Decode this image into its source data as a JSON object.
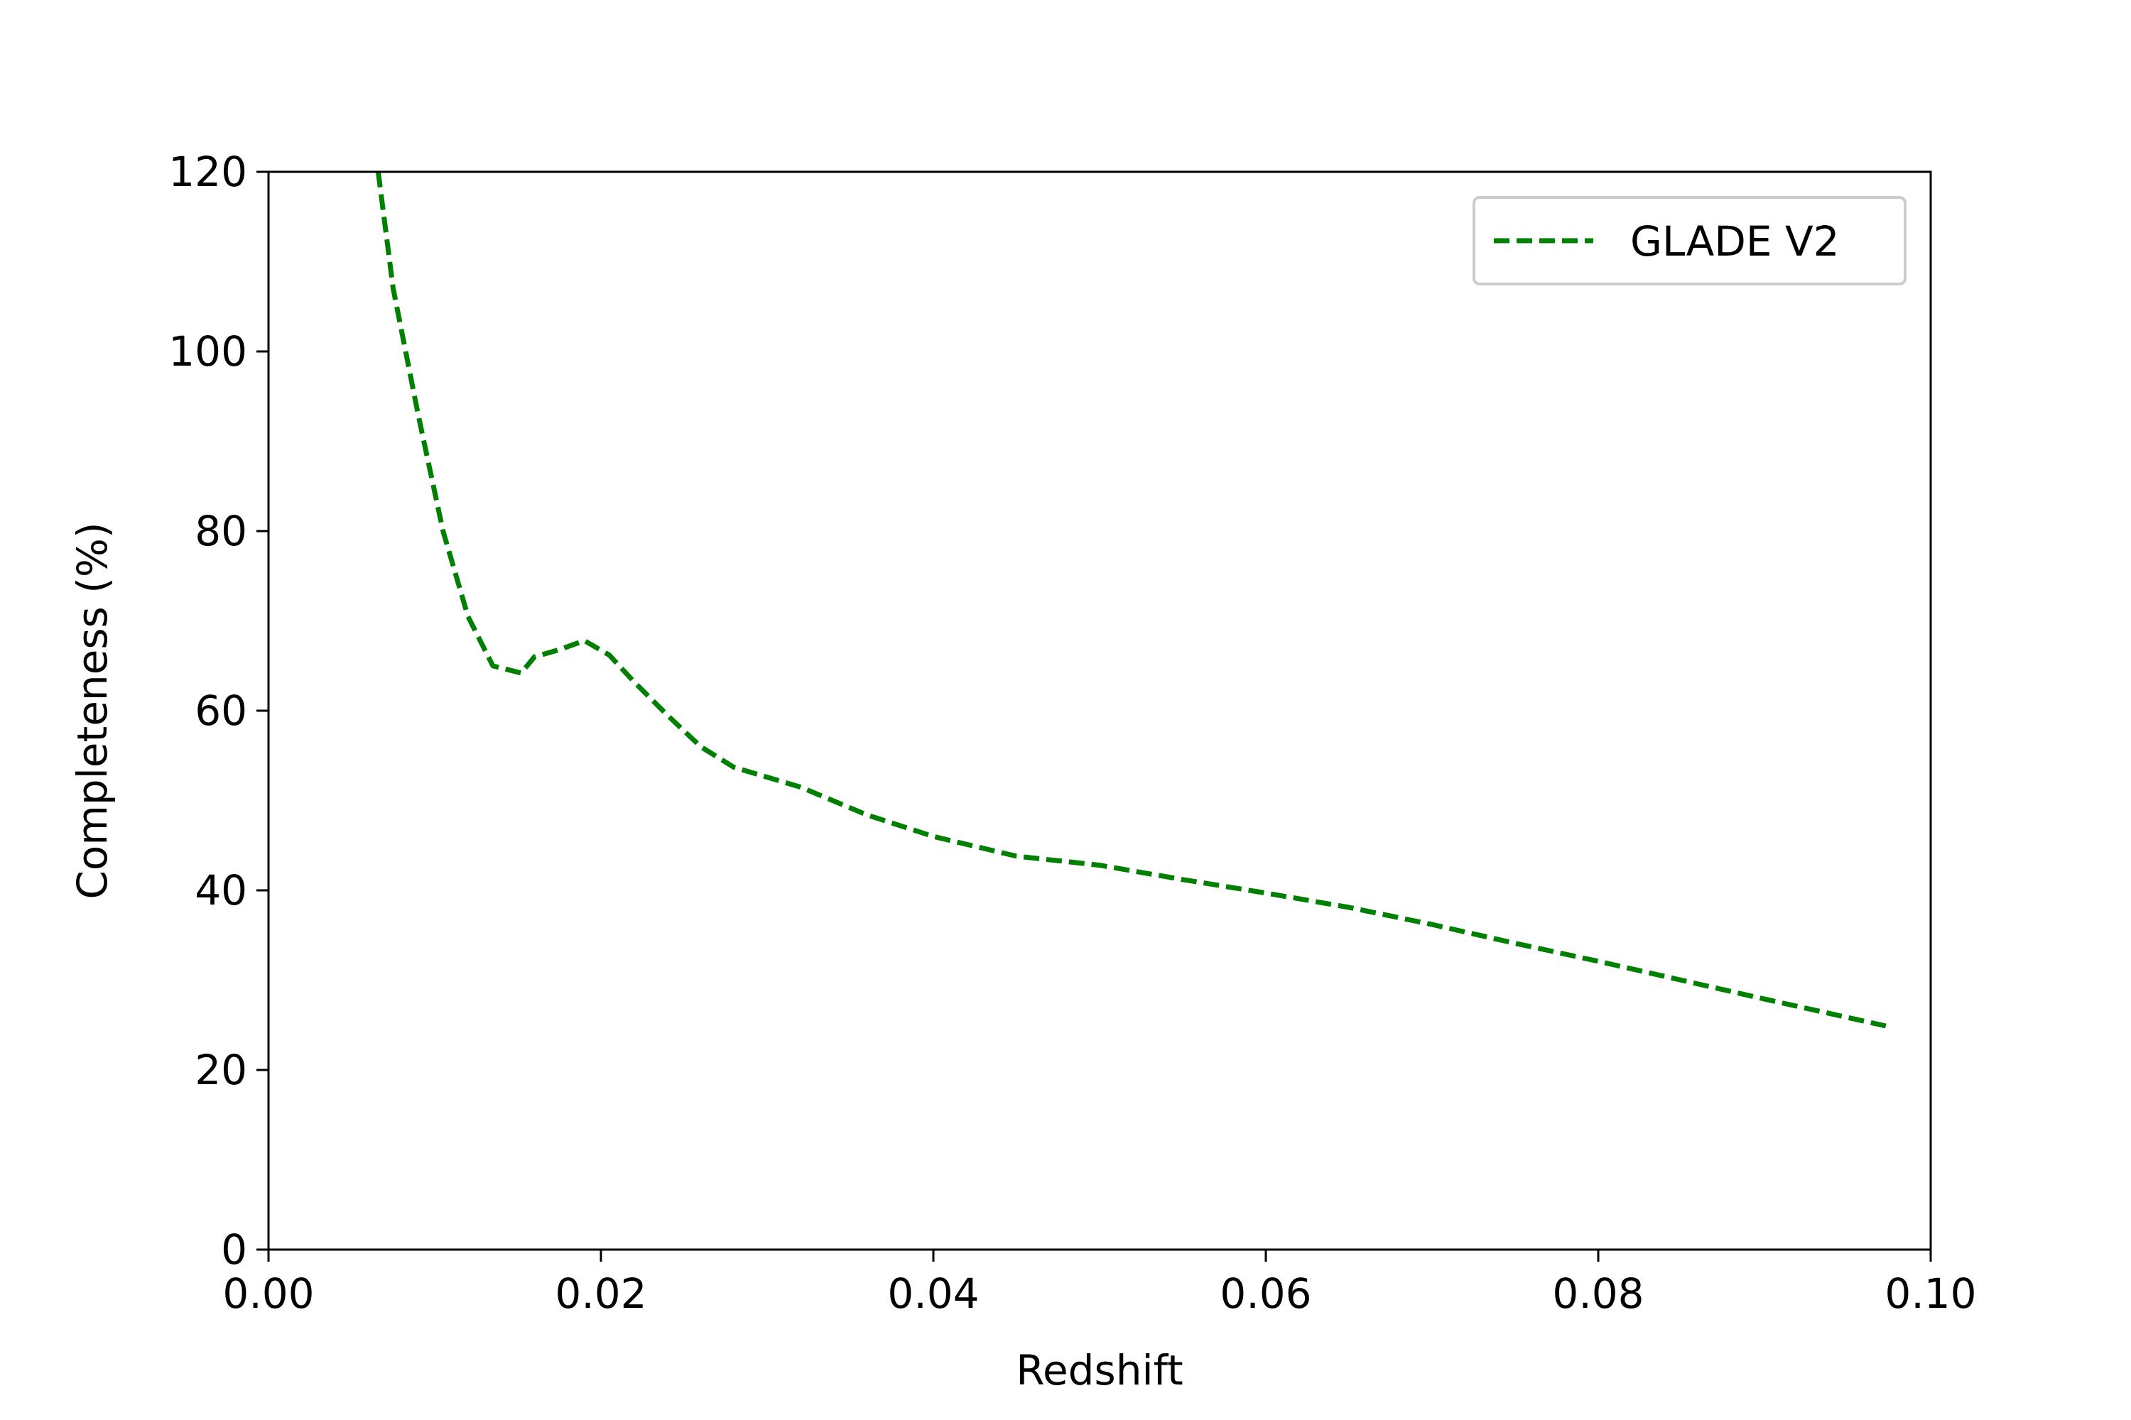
{
  "chart_data": {
    "type": "line",
    "title": "",
    "xlabel": "Redshift",
    "ylabel": "Completeness (%)",
    "xlim": [
      0.0,
      0.1
    ],
    "ylim": [
      0,
      120
    ],
    "xticks": [
      0.0,
      0.02,
      0.04,
      0.06,
      0.08,
      0.1
    ],
    "xtick_labels": [
      "0.00",
      "0.02",
      "0.04",
      "0.06",
      "0.08",
      "0.10"
    ],
    "yticks": [
      0,
      20,
      40,
      60,
      80,
      100,
      120
    ],
    "ytick_labels": [
      "0",
      "20",
      "40",
      "60",
      "80",
      "100",
      "120"
    ],
    "grid": false,
    "legend_position": "top-right",
    "series": [
      {
        "name": "GLADE V2",
        "color": "#008000",
        "line_style": "dashed",
        "x": [
          0.0066,
          0.0075,
          0.009,
          0.0105,
          0.012,
          0.0135,
          0.0152,
          0.016,
          0.0175,
          0.019,
          0.0205,
          0.022,
          0.024,
          0.026,
          0.028,
          0.032,
          0.036,
          0.04,
          0.045,
          0.05,
          0.055,
          0.06,
          0.065,
          0.07,
          0.075,
          0.08,
          0.085,
          0.09,
          0.0973
        ],
        "y": [
          120,
          107,
          93,
          80,
          70.5,
          65,
          64.2,
          66,
          66.8,
          67.8,
          66.2,
          63.2,
          59.5,
          56,
          53.7,
          51.5,
          48.4,
          46,
          43.8,
          42.8,
          41.2,
          39.7,
          38.1,
          36.2,
          34.1,
          32.1,
          30,
          27.9,
          24.9
        ]
      }
    ]
  }
}
